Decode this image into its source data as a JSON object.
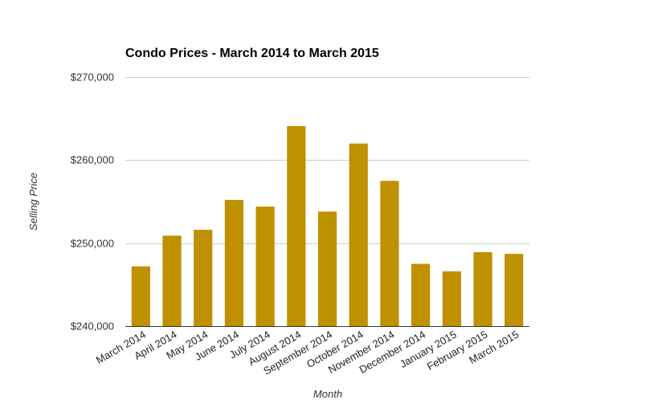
{
  "chart_data": {
    "type": "bar",
    "title": "Condo Prices - March 2014 to March 2015",
    "xlabel": "Month",
    "ylabel": "Selling Price",
    "categories": [
      "March 2014",
      "April 2014",
      "May 2014",
      "June 2014",
      "July 2014",
      "August 2014",
      "September 2014",
      "October 2014",
      "November 2014",
      "December 2014",
      "January 2015",
      "February 2015",
      "March 2015"
    ],
    "values": [
      247200,
      250900,
      251600,
      255200,
      254400,
      264100,
      253800,
      262000,
      257500,
      247500,
      246600,
      248900,
      248700
    ],
    "ylim": [
      240000,
      270000
    ],
    "yticks": [
      240000,
      250000,
      260000,
      270000
    ],
    "ytick_labels": [
      "$240,000",
      "$250,000",
      "$260,000",
      "$270,000"
    ],
    "grid": true,
    "legend": "none",
    "bar_color": "#bf9000"
  }
}
